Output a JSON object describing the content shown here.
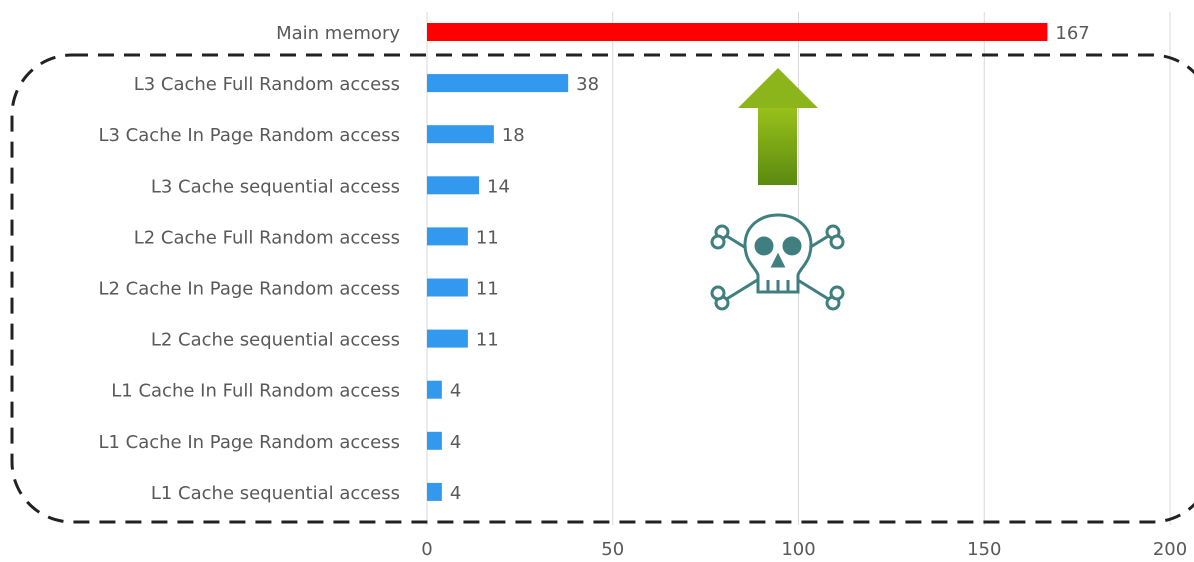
{
  "chart_data": {
    "type": "bar",
    "orientation": "horizontal",
    "categories": [
      "Main memory",
      "L3 Cache Full Random access",
      "L3 Cache In Page Random access",
      "L3 Cache sequential access",
      "L2 Cache Full Random access",
      "L2 Cache In Page Random access",
      "L2 Cache sequential access",
      "L1 Cache In Full Random access",
      "L1 Cache In Page Random access",
      "L1 Cache sequential access"
    ],
    "values": [
      167,
      38,
      18,
      14,
      11,
      11,
      11,
      4,
      4,
      4
    ],
    "colors": [
      "#ff0000",
      "#3399ee",
      "#3399ee",
      "#3399ee",
      "#3399ee",
      "#3399ee",
      "#3399ee",
      "#3399ee",
      "#3399ee",
      "#3399ee"
    ],
    "xlim": [
      0,
      200
    ],
    "xticks": [
      0,
      50,
      100,
      150,
      200
    ],
    "grid": true
  }
}
